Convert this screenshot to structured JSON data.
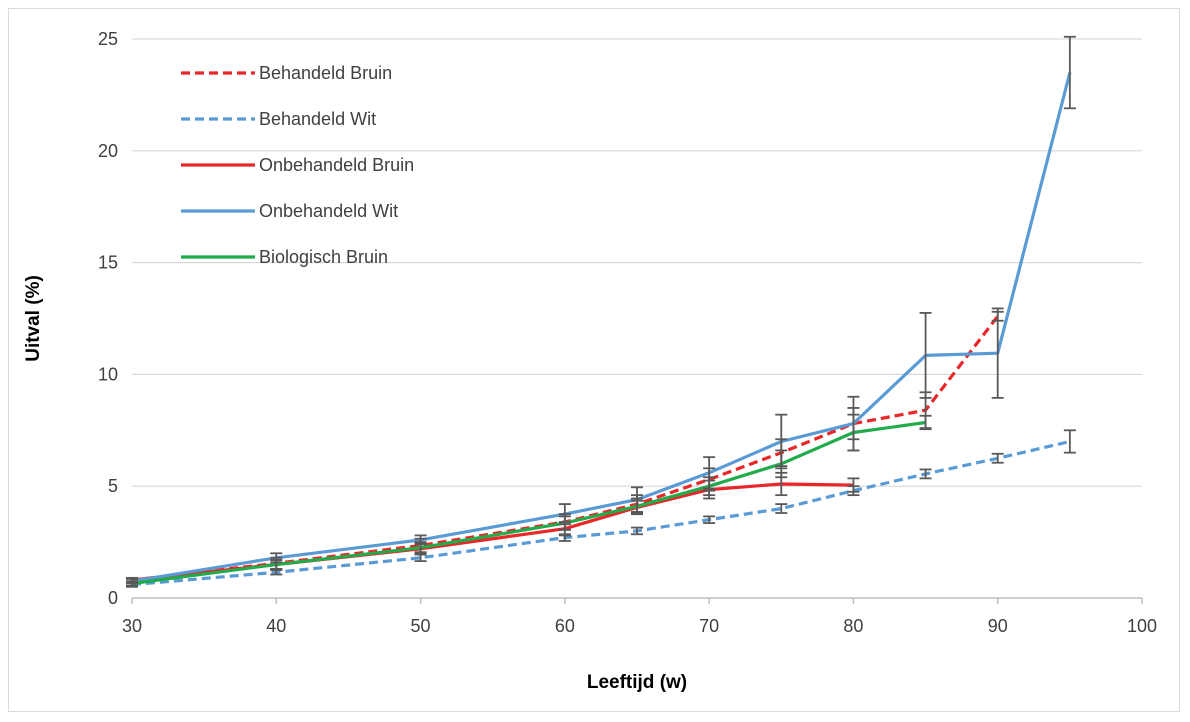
{
  "chart_data": {
    "type": "line",
    "title": "",
    "xlabel": "Leeftijd (w)",
    "ylabel": "Uitval (%)",
    "xlim": [
      30,
      100
    ],
    "ylim": [
      0,
      25
    ],
    "x_ticks": [
      "30",
      "40",
      "50",
      "60",
      "70",
      "80",
      "90",
      "100"
    ],
    "y_ticks": [
      "0",
      "5",
      "10",
      "15",
      "20",
      "25"
    ],
    "grid": "horizontal",
    "legend_position": "top-left",
    "series": [
      {
        "name": "Behandeld Bruin",
        "color": "#e8272a",
        "dashed": true,
        "x": [
          30,
          40,
          50,
          60,
          65,
          70,
          75,
          80,
          85,
          90
        ],
        "y": [
          0.8,
          1.55,
          2.35,
          3.4,
          4.2,
          5.3,
          6.5,
          7.8,
          8.4,
          12.6
        ],
        "err": [
          0.1,
          0.25,
          0.3,
          0.35,
          0.4,
          0.5,
          0.6,
          0.7,
          0.8,
          0.2
        ]
      },
      {
        "name": "Behandeld Wit",
        "color": "#5b9bd5",
        "dashed": true,
        "x": [
          30,
          40,
          50,
          60,
          65,
          70,
          75,
          80,
          85,
          90,
          95
        ],
        "y": [
          0.6,
          1.15,
          1.8,
          2.7,
          3.0,
          3.5,
          4.0,
          4.8,
          5.55,
          6.25,
          7.0
        ],
        "err": [
          0.1,
          0.1,
          0.15,
          0.15,
          0.15,
          0.15,
          0.2,
          0.2,
          0.2,
          0.2,
          0.5
        ]
      },
      {
        "name": "Onbehandeld Bruin",
        "color": "#e8272a",
        "dashed": false,
        "x": [
          30,
          40,
          50,
          60,
          65,
          70,
          75,
          80
        ],
        "y": [
          0.8,
          1.5,
          2.2,
          3.1,
          4.05,
          4.85,
          5.1,
          5.05
        ],
        "err": [
          0.1,
          0.2,
          0.25,
          0.3,
          0.3,
          0.4,
          0.5,
          0.3
        ]
      },
      {
        "name": "Onbehandeld Wit",
        "color": "#5b9bd5",
        "dashed": false,
        "x": [
          30,
          40,
          50,
          60,
          65,
          70,
          75,
          80,
          85,
          90,
          95
        ],
        "y": [
          0.75,
          1.8,
          2.6,
          3.75,
          4.4,
          5.6,
          7.0,
          7.8,
          10.85,
          10.95,
          23.5
        ],
        "err": [
          0.1,
          0.2,
          0.2,
          0.45,
          0.55,
          0.7,
          1.2,
          1.2,
          1.9,
          2.0,
          1.6
        ]
      },
      {
        "name": "Biologisch Bruin",
        "color": "#22ab4b",
        "dashed": false,
        "x": [
          30,
          40,
          50,
          60,
          65,
          70,
          75,
          80,
          85
        ],
        "y": [
          0.65,
          1.5,
          2.25,
          3.35,
          4.1,
          5.0,
          6.0,
          7.4,
          7.85
        ],
        "err": [
          0.1,
          0.2,
          0.25,
          0.3,
          0.35,
          0.4,
          0.6,
          0.8,
          0.3
        ]
      }
    ]
  }
}
